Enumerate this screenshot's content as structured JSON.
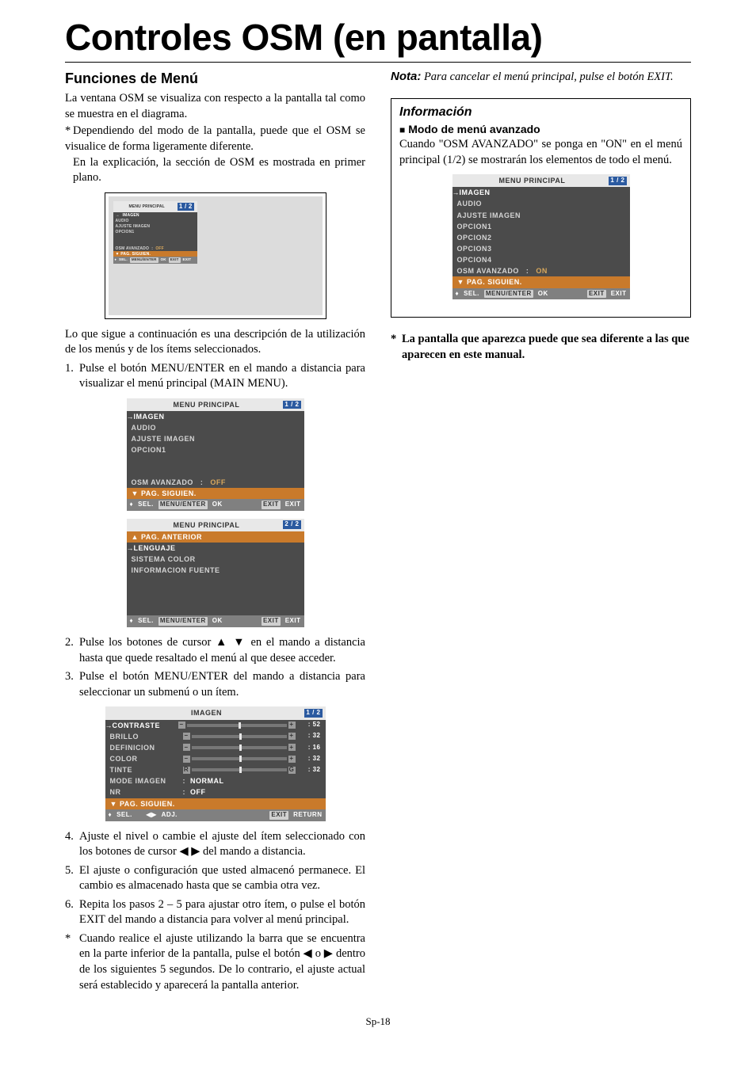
{
  "page": {
    "title": "Controles OSM (en pantalla)",
    "footer": "Sp-18"
  },
  "left": {
    "heading": "Funciones de Menú",
    "intro": "La ventana OSM se visualiza con respecto a la pantalla tal como se muestra en el diagrama.",
    "star1a": "Dependiendo del modo de la pantalla, puede que el OSM se visualice de forma ligeramente diferente.",
    "star1b": "En la explicación, la sección de OSM es mostrada en primer plano.",
    "afterTv": "Lo que sigue a continuación es una descripción de la utilización de los menús y de los ítems seleccionados.",
    "step1": "Pulse el botón MENU/ENTER en el mando a distancia para visualizar el menú principal (MAIN MENU).",
    "step2": "Pulse los botones de cursor ▲ ▼ en el mando a distancia hasta que quede resaltado el menú al que desee acceder.",
    "step3": "Pulse el botón MENU/ENTER del mando a distancia para seleccionar un submenú o un ítem.",
    "step4": "Ajuste el nivel o cambie el ajuste del ítem seleccionado con los botones de cursor ◀ ▶ del mando a distancia.",
    "step5": "El ajuste o configuración que usted almacenó permanece. El cambio es almacenado hasta que se cambia otra vez.",
    "step6": "Repita los pasos 2 – 5 para ajustar otro ítem, o pulse el botón EXIT del mando a distancia para volver al menú principal.",
    "star2": "Cuando realice el ajuste utilizando la barra que se encuentra en la parte inferior de la pantalla, pulse el botón ◀ o ▶ dentro de los siguientes 5 segundos. De lo contrario, el ajuste actual será establecido y aparecerá la pantalla anterior."
  },
  "right": {
    "noteLabel": "Nota:",
    "noteText": "Para cancelar el menú principal, pulse el botón EXIT.",
    "infoHeading": "Información",
    "subHeading": "Modo de menú avanzado",
    "infoBody": "Cuando \"OSM AVANZADO\" se ponga en \"ON\" en el menú principal (1/2) se mostrarán los elementos de todo el menú.",
    "disclaimer": "La pantalla que aparezca puede que sea diferente a las que aparecen en este manual."
  },
  "osmMain1": {
    "title": "MENU PRINCIPAL",
    "page": "1 / 2",
    "items": [
      "IMAGEN",
      "AUDIO",
      "AJUSTE IMAGEN",
      "OPCION1"
    ],
    "advRow": "OSM AVANZADO",
    "advSep": ":",
    "advVal": "OFF",
    "next": "PAG. SIGUIEN.",
    "bar": {
      "sel": "SEL.",
      "menu": "MENU/ENTER",
      "ok": "OK",
      "exit": "EXIT",
      "exit2": "EXIT"
    }
  },
  "osmMain2": {
    "title": "MENU PRINCIPAL",
    "page": "2 / 2",
    "prev": "PAG. ANTERIOR",
    "items": [
      "LENGUAJE",
      "SISTEMA COLOR",
      "INFORMACION FUENTE"
    ],
    "bar": {
      "sel": "SEL.",
      "menu": "MENU/ENTER",
      "ok": "OK",
      "exit": "EXIT",
      "exit2": "EXIT"
    }
  },
  "osmImagen": {
    "title": "IMAGEN",
    "page": "1 / 2",
    "rows": [
      {
        "label": "CONTRASTE",
        "val": ": 52",
        "pos": 52,
        "hl": true
      },
      {
        "label": "BRILLO",
        "val": ": 32",
        "pos": 50
      },
      {
        "label": "DEFINICION",
        "val": ": 16",
        "pos": 50
      },
      {
        "label": "COLOR",
        "val": ": 32",
        "pos": 50
      },
      {
        "label": "TINTE",
        "val": ": 32",
        "pos": 50,
        "rg": true
      }
    ],
    "mode": {
      "label": "MODE IMAGEN",
      "sep": ":",
      "val": "NORMAL"
    },
    "nr": {
      "label": "NR",
      "sep": ":",
      "val": "OFF"
    },
    "next": "PAG. SIGUIEN.",
    "bar": {
      "sel": "SEL.",
      "adj": "ADJ.",
      "exit": "EXIT",
      "ret": "RETURN"
    }
  },
  "osmAdv": {
    "title": "MENU PRINCIPAL",
    "page": "1 / 2",
    "items": [
      "IMAGEN",
      "AUDIO",
      "AJUSTE IMAGEN",
      "OPCION1",
      "OPCION2",
      "OPCION3",
      "OPCION4"
    ],
    "advRow": "OSM AVANZADO",
    "advSep": ":",
    "advVal": "ON",
    "next": "PAG. SIGUIEN.",
    "bar": {
      "sel": "SEL.",
      "menu": "MENU/ENTER",
      "ok": "OK",
      "exit": "EXIT",
      "exit2": "EXIT"
    }
  },
  "colors": {
    "pageBadgeBlue": "#2b5aa0",
    "pageBadgeOrange": "#c97a2b",
    "osmBg": "#4b4b4b",
    "osmTitleBg": "#e8e8e8"
  }
}
